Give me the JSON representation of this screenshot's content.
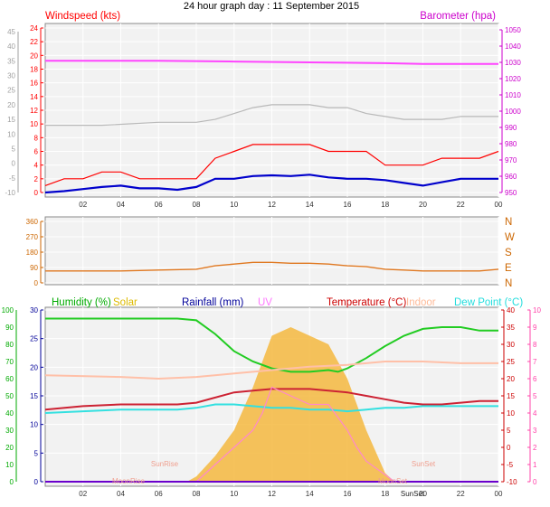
{
  "title": "24 hour graph day : 11 September 2015",
  "x_ticks": [
    "02",
    "04",
    "06",
    "08",
    "10",
    "12",
    "14",
    "16",
    "18",
    "20",
    "22",
    "00"
  ],
  "chart_data": [
    {
      "type": "line",
      "name": "wind-barometer",
      "labels": {
        "left": "Windspeed (kts)",
        "right": "Barometer (hpa)"
      },
      "left_axis_outer": {
        "ticks": [
          -10,
          -5,
          0,
          5,
          10,
          15,
          20,
          25,
          30,
          35,
          40,
          45
        ],
        "color": "#a0a0a0"
      },
      "left_axis_inner": {
        "ticks": [
          0,
          2,
          4,
          6,
          8,
          10,
          12,
          14,
          16,
          18,
          20,
          22,
          24
        ],
        "color": "#ff0000"
      },
      "right_axis": {
        "ticks": [
          950,
          960,
          970,
          980,
          990,
          1000,
          1010,
          1020,
          1030,
          1040,
          1050
        ],
        "color": "#cc00cc"
      },
      "series": [
        {
          "label": "barometer",
          "color": "#ff44ff",
          "x": [
            0,
            6,
            10,
            14,
            18,
            20,
            24
          ],
          "y": [
            1031,
            1031,
            1030.5,
            1030,
            1029.5,
            1029,
            1029
          ]
        },
        {
          "label": "outer-gray",
          "color": "#b8b8b8",
          "x": [
            0,
            3,
            6,
            7,
            8,
            9,
            10,
            11,
            12,
            13,
            14,
            15,
            16,
            17,
            18,
            19,
            20,
            21,
            22,
            23,
            24
          ],
          "y": [
            13,
            13,
            14,
            14,
            14,
            15,
            17,
            19,
            20,
            20,
            20,
            19,
            19,
            17,
            16,
            15,
            15,
            15,
            16,
            16,
            16
          ]
        },
        {
          "label": "windspeed-gust",
          "color": "#ff0000",
          "x": [
            0,
            1,
            2,
            3,
            4,
            5,
            6,
            7,
            8,
            9,
            10,
            11,
            12,
            13,
            14,
            15,
            16,
            17,
            18,
            19,
            20,
            21,
            22,
            23,
            24
          ],
          "y": [
            1,
            2,
            2,
            3,
            3,
            2,
            2,
            2,
            2,
            5,
            6,
            7,
            7,
            7,
            7,
            6,
            6,
            6,
            4,
            4,
            4,
            5,
            5,
            5,
            6
          ]
        },
        {
          "label": "windspeed-avg",
          "color": "#0000cc",
          "x": [
            0,
            1,
            2,
            3,
            4,
            5,
            6,
            7,
            8,
            9,
            10,
            11,
            12,
            13,
            14,
            15,
            16,
            17,
            18,
            19,
            20,
            21,
            22,
            23,
            24
          ],
          "y": [
            0,
            0.2,
            0.5,
            0.8,
            1,
            0.6,
            0.6,
            0.4,
            0.8,
            2,
            2,
            2.4,
            2.5,
            2.4,
            2.6,
            2.2,
            2,
            2,
            1.8,
            1.4,
            1,
            1.5,
            2,
            2,
            2
          ]
        }
      ]
    },
    {
      "type": "line",
      "name": "wind-direction",
      "left_axis": {
        "ticks": [
          0,
          90,
          180,
          270,
          360
        ],
        "color": "#cc6600"
      },
      "right_labels": [
        "N",
        "W",
        "S",
        "E",
        "N"
      ],
      "series": [
        {
          "label": "direction",
          "color": "#e07820",
          "x": [
            0,
            4,
            6,
            8,
            9,
            10,
            11,
            12,
            13,
            14,
            15,
            16,
            17,
            18,
            19,
            20,
            21,
            22,
            23,
            24
          ],
          "y": [
            70,
            70,
            75,
            80,
            100,
            110,
            120,
            120,
            115,
            115,
            110,
            100,
            95,
            80,
            75,
            70,
            70,
            70,
            70,
            80
          ]
        }
      ]
    },
    {
      "type": "line",
      "name": "temperature-humidity",
      "labels": {
        "humidity": "Humidity (%)",
        "solar": "Solar",
        "rainfall": "Rainfall (mm)",
        "uv": "UV",
        "temperature": "Temperature (°C)",
        "indoor": "Indoor",
        "dewpoint": "Dew Point (°C)"
      },
      "label_colors": {
        "humidity": "#00aa00",
        "solar": "#ddbb00",
        "rainfall": "#000099",
        "uv": "#ff77ff",
        "temperature": "#cc0000",
        "indoor": "#ffbb99",
        "dewpoint": "#22dddd"
      },
      "axis_humidity": {
        "ticks": [
          0,
          10,
          20,
          30,
          40,
          50,
          60,
          70,
          80,
          90,
          100
        ],
        "color": "#00aa00"
      },
      "axis_rain": {
        "ticks": [
          0,
          5,
          10,
          15,
          20,
          25,
          30
        ],
        "color": "#000099"
      },
      "axis_temp": {
        "ticks": [
          -10,
          -5,
          0,
          5,
          10,
          15,
          20,
          25,
          30,
          35,
          40
        ],
        "color": "#cc0000"
      },
      "axis_uv": {
        "ticks": [
          0,
          1,
          2,
          3,
          4,
          5,
          6,
          7,
          8,
          9,
          10
        ],
        "color": "#ff44aa"
      },
      "annotations": [
        "SunRise",
        "MoonRise",
        "SunSet",
        "SunSet",
        "MoonSet"
      ],
      "series": [
        {
          "label": "humidity",
          "color": "#22cc22",
          "x": [
            0,
            2,
            4,
            6,
            7,
            8,
            9,
            10,
            11,
            12,
            13,
            14,
            15,
            15.5,
            16,
            17,
            18,
            19,
            20,
            21,
            22,
            23,
            24
          ],
          "y": [
            95,
            95,
            95,
            95,
            95,
            94,
            86,
            76,
            70,
            66,
            64,
            64,
            65,
            64,
            66,
            72,
            79,
            85,
            89,
            90,
            90,
            88,
            88
          ]
        },
        {
          "label": "indoor",
          "color": "#ffc0a8",
          "x": [
            0,
            4,
            6,
            8,
            10,
            12,
            14,
            16,
            18,
            20,
            22,
            24
          ],
          "y": [
            21,
            20.5,
            20,
            20.5,
            21.5,
            22.5,
            23.5,
            24,
            25,
            25,
            24.5,
            24.5
          ]
        },
        {
          "label": "temperature",
          "color": "#cc2233",
          "x": [
            0,
            2,
            4,
            6,
            7,
            8,
            9,
            10,
            11,
            12,
            13,
            14,
            15,
            16,
            17,
            18,
            19,
            20,
            21,
            22,
            23,
            24
          ],
          "y": [
            11,
            12,
            12.5,
            12.5,
            12.5,
            13,
            14.5,
            16,
            16.5,
            17,
            17,
            17,
            16.5,
            16,
            15,
            14,
            13,
            12.5,
            12.5,
            13,
            13.5,
            13.5
          ]
        },
        {
          "label": "dewpoint",
          "color": "#33e0e0",
          "x": [
            0,
            2,
            4,
            6,
            7,
            8,
            9,
            10,
            11,
            12,
            13,
            14,
            15,
            16,
            17,
            18,
            19,
            20,
            21,
            22,
            23,
            24
          ],
          "y": [
            10,
            10.5,
            11,
            11,
            11,
            11.5,
            12.5,
            12.5,
            12,
            11.5,
            11.5,
            11,
            11,
            10.5,
            11,
            11.5,
            11.5,
            12,
            12,
            12,
            12,
            12
          ]
        },
        {
          "label": "solar",
          "color": "#f4b840",
          "x": [
            0,
            7.5,
            8,
            9,
            10,
            11,
            12,
            13,
            14,
            15,
            16,
            17,
            18,
            18.5,
            24
          ],
          "y": [
            0,
            0,
            3,
            15,
            30,
            55,
            85,
            90,
            85,
            80,
            60,
            30,
            5,
            0,
            0
          ]
        },
        {
          "label": "uv",
          "color": "#ff88cc",
          "x": [
            0,
            8,
            9,
            10,
            11,
            11.5,
            12,
            13,
            14,
            15,
            16,
            16.5,
            17,
            17.5,
            18,
            18.5,
            24
          ],
          "y": [
            0,
            0,
            1,
            2,
            3,
            4,
            5.5,
            5,
            4.5,
            4.5,
            3,
            2,
            1.2,
            0.8,
            0.4,
            0,
            0
          ]
        }
      ]
    }
  ]
}
